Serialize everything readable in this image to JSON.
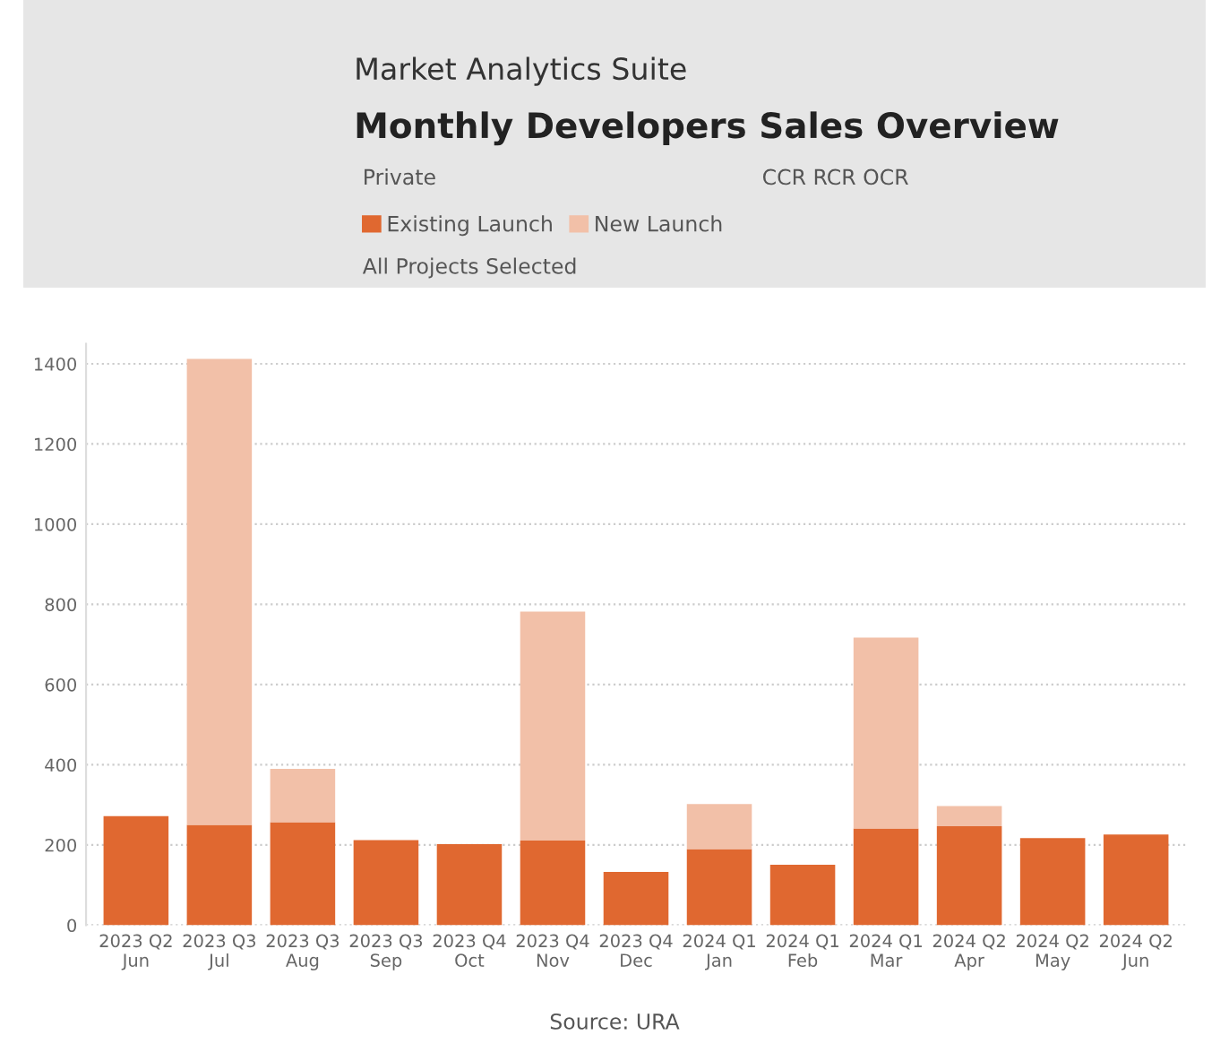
{
  "chart_data": {
    "type": "bar",
    "title": "Monthly Developers Sales Overview",
    "subtitle": "Market Analytics Suite",
    "categories": [
      "2023 Q2\nJun",
      "2023 Q3\nJul",
      "2023 Q3\nAug",
      "2023 Q3\nSep",
      "2023 Q4\nOct",
      "2023 Q4\nNov",
      "2023 Q4\nDec",
      "2024 Q1\nJan",
      "2024 Q1\nFeb",
      "2024 Q1\nMar",
      "2024 Q2\nApr",
      "2024 Q2\nMay",
      "2024 Q2\nJun"
    ],
    "series": [
      {
        "name": "Existing Launch",
        "color": "#e06830",
        "values": [
          272,
          250,
          257,
          212,
          202,
          211,
          133,
          190,
          151,
          241,
          247,
          217,
          226
        ]
      },
      {
        "name": "New Launch",
        "color": "#f2c0a8",
        "values": [
          0,
          1162,
          133,
          0,
          0,
          571,
          0,
          112,
          0,
          476,
          50,
          0,
          0
        ]
      }
    ],
    "stacked": true,
    "ylim": [
      0,
      1450
    ],
    "yticks": [
      0,
      200,
      400,
      600,
      800,
      1000,
      1200,
      1400
    ],
    "grid": "y",
    "legend": "top left",
    "annotations": [
      "Private",
      "CCR RCR OCR",
      "All Projects Selected",
      "Source: URA"
    ]
  }
}
